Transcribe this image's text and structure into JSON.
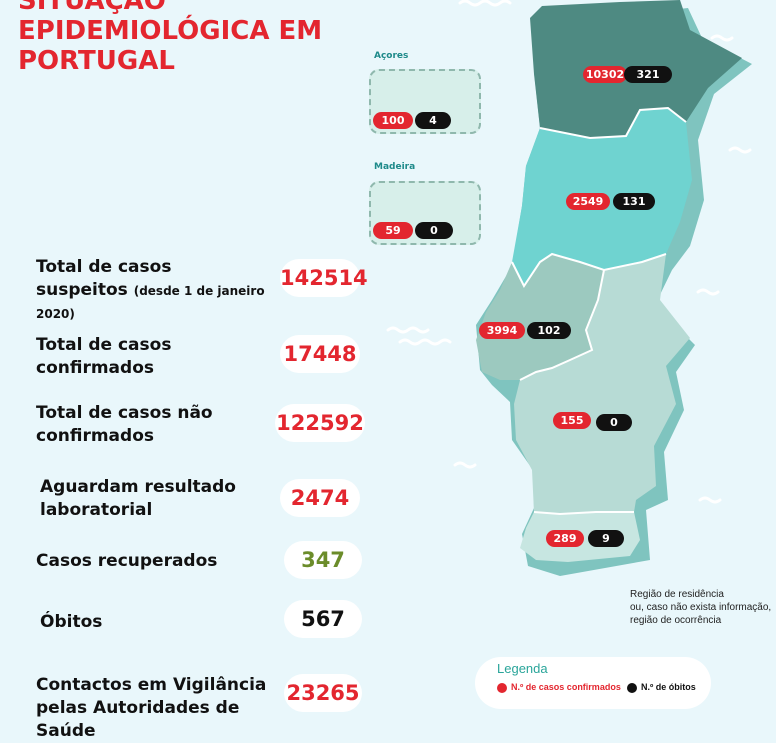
{
  "title": {
    "line1": "SITUAÇÃO",
    "line2": "EPIDEMIOLÓGICA EM",
    "line3": "PORTUGAL"
  },
  "stats": {
    "suspected": {
      "label": "Total de casos",
      "label2": "suspeitos",
      "note": "(desde 1 de janeiro 2020)",
      "value": "142514"
    },
    "confirmed": {
      "label": "Total de casos",
      "label2": "confirmados",
      "value": "17448"
    },
    "not_confirmed": {
      "label": "Total de casos não",
      "label2": "confirmados",
      "value": "122592"
    },
    "awaiting": {
      "label": "Aguardam resultado",
      "label2": "laboratorial",
      "value": "2474"
    },
    "recovered": {
      "label": "Casos recuperados",
      "value": "347"
    },
    "deaths": {
      "label": "Óbitos",
      "value": "567"
    },
    "contacts": {
      "label": "Contactos em Vigilância",
      "label2": "pelas Autoridades de Saúde",
      "value": "23265"
    }
  },
  "regions": {
    "norte": {
      "confirmed": "10302",
      "deaths": "321"
    },
    "centro": {
      "confirmed": "2549",
      "deaths": "131"
    },
    "lisboa": {
      "confirmed": "3994",
      "deaths": "102"
    },
    "alentejo": {
      "confirmed": "155",
      "deaths": "0"
    },
    "algarve": {
      "confirmed": "289",
      "deaths": "9"
    },
    "acores": {
      "label": "Açores",
      "confirmed": "100",
      "deaths": "4"
    },
    "madeira": {
      "label": "Madeira",
      "confirmed": "59",
      "deaths": "0"
    }
  },
  "footnote": {
    "line1": "Região de residência",
    "line2": "ou, caso não exista informação,",
    "line3": "região de ocorrência"
  },
  "legend": {
    "title": "Legenda",
    "confirmed_label": "N.º de casos confirmados",
    "deaths_label": "N.º de óbitos"
  },
  "colors": {
    "accent_red": "#e3262f",
    "norte": "#4e8a82",
    "centro": "#6fd3d0",
    "lisboa": "#9cc9bf",
    "alentejo": "#b7dbd5",
    "algarve": "#c7e6e1",
    "shadow": "#7fc4bf"
  }
}
